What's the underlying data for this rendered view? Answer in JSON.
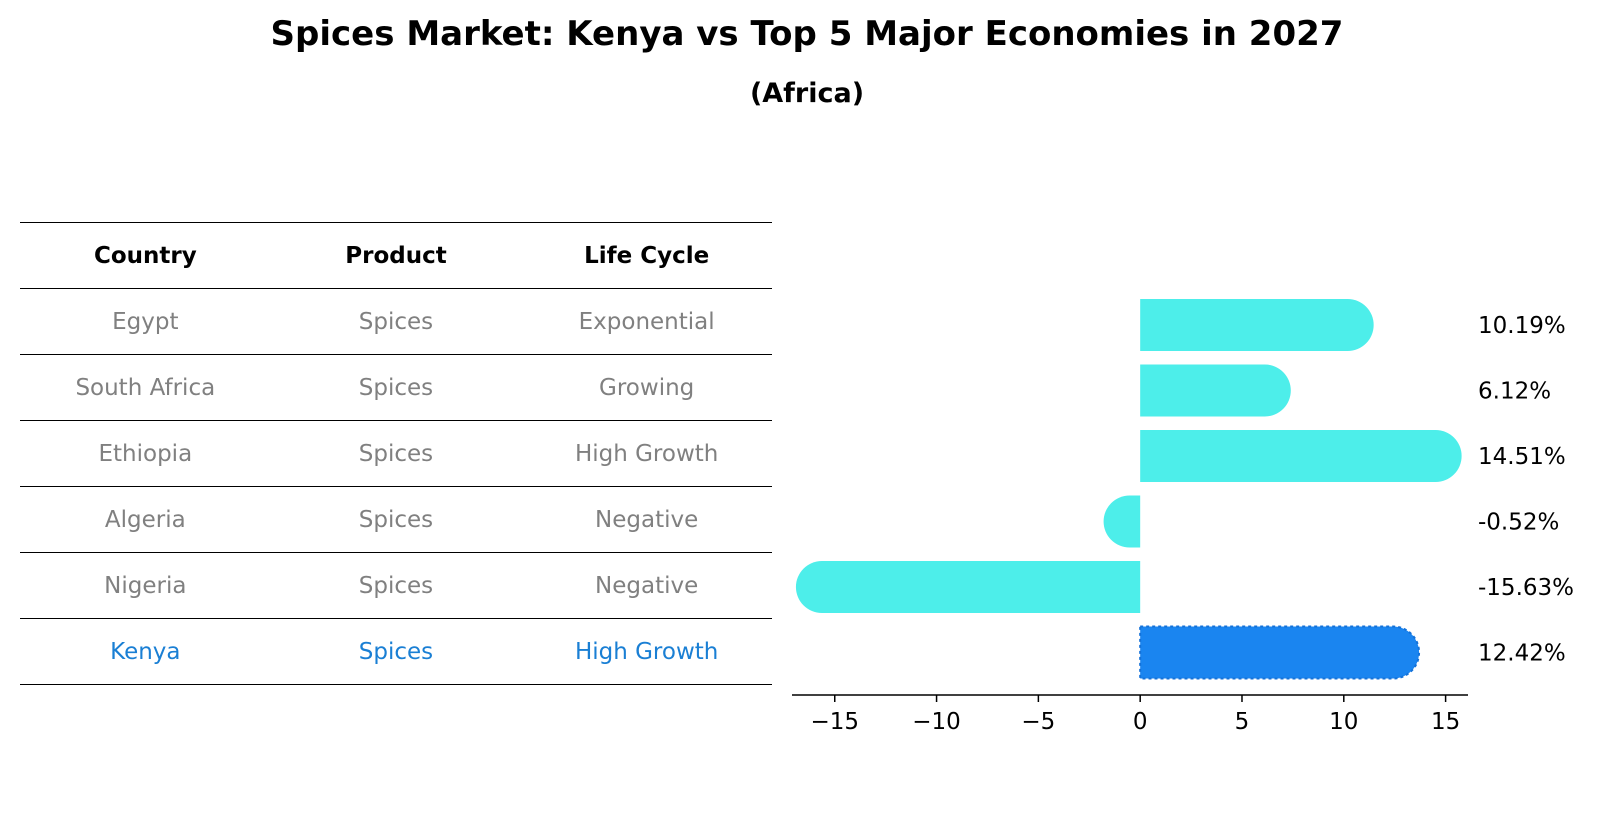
{
  "title": "Spices Market: Kenya vs Top 5 Major Economies in 2027",
  "subtitle": "(Africa)",
  "table": {
    "headers": [
      "Country",
      "Product",
      "Life Cycle"
    ],
    "rows": [
      [
        "Egypt",
        "Spices",
        "Exponential"
      ],
      [
        "South Africa",
        "Spices",
        "Growing"
      ],
      [
        "Ethiopia",
        "Spices",
        "High Growth"
      ],
      [
        "Algeria",
        "Spices",
        "Negative"
      ],
      [
        "Nigeria",
        "Spices",
        "Negative"
      ],
      [
        "Kenya",
        "Spices",
        "High Growth"
      ]
    ]
  },
  "colors": {
    "bar": "#4deeea",
    "highlight_bar": "#1a85f0",
    "highlight_text": "#1a7fd4",
    "table_text": "#808080"
  },
  "chart_data": {
    "type": "bar",
    "orientation": "horizontal",
    "categories": [
      "Egypt",
      "South Africa",
      "Ethiopia",
      "Algeria",
      "Nigeria",
      "Kenya"
    ],
    "values": [
      10.19,
      6.12,
      14.51,
      -0.52,
      -15.63,
      12.42
    ],
    "value_labels": [
      "10.19%",
      "6.12%",
      "14.51%",
      "-0.52%",
      "-15.63%",
      "12.42%"
    ],
    "highlight": "Kenya",
    "xlim": [
      -17.1,
      16.1
    ],
    "xticks": [
      -15,
      -10,
      -5,
      0,
      5,
      10,
      15
    ],
    "xtick_labels": [
      "−15",
      "−10",
      "−5",
      "0",
      "5",
      "10",
      "15"
    ],
    "xlabel": "",
    "ylabel": "",
    "grid": false
  }
}
